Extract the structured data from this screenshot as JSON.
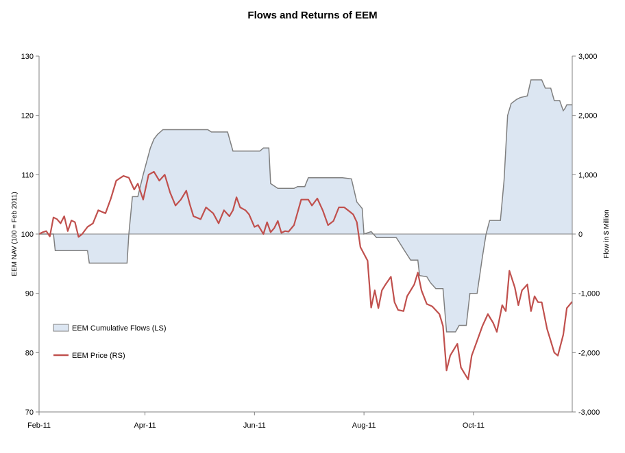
{
  "chart_data": {
    "type": "line",
    "title": "Flows and Returns of EEM",
    "x_tick_labels": [
      "Feb-11",
      "Apr-11",
      "Jun-11",
      "Aug-11",
      "Oct-11"
    ],
    "x_tick_positions": [
      "2011-02-01",
      "2011-04-01",
      "2011-06-01",
      "2011-08-01",
      "2011-10-01"
    ],
    "x_range": [
      "2011-02-01",
      "2011-11-25"
    ],
    "left_axis": {
      "label": "EEM NAV (100 = Feb 2011)",
      "range": [
        70,
        130
      ],
      "ticks": [
        70,
        80,
        90,
        100,
        110,
        120,
        130
      ],
      "tick_labels": [
        "70",
        "80",
        "90",
        "100",
        "110",
        "120",
        "130"
      ]
    },
    "right_axis": {
      "label": "Flow in $ Million",
      "range": [
        -3000,
        3000
      ],
      "ticks": [
        -3000,
        -2000,
        -1000,
        0,
        1000,
        2000,
        3000
      ],
      "tick_labels": [
        "-3,000",
        "-2,000",
        "-1,000",
        "0",
        "1,000",
        "2,000",
        "3,000"
      ]
    },
    "grid": false,
    "legend": {
      "placement": "left-middle",
      "entries": [
        "EEM Cumulative  Flows (LS)",
        "EEM Price (RS)"
      ]
    },
    "colors": {
      "flows_fill": "#dce6f2",
      "flows_line": "#7f7f7f",
      "price_line": "#c0504d",
      "zero_line": "#7f7f7f",
      "axis": "#808080"
    },
    "series": [
      {
        "name": "EEM Cumulative  Flows (LS)",
        "axis": "right",
        "style": "area",
        "points": [
          [
            "2011-02-01",
            0
          ],
          [
            "2011-02-09",
            0
          ],
          [
            "2011-02-10",
            -280
          ],
          [
            "2011-02-28",
            -280
          ],
          [
            "2011-03-01",
            -490
          ],
          [
            "2011-03-22",
            -490
          ],
          [
            "2011-03-23",
            0
          ],
          [
            "2011-03-25",
            630
          ],
          [
            "2011-03-28",
            630
          ],
          [
            "2011-03-31",
            1000
          ],
          [
            "2011-04-04",
            1450
          ],
          [
            "2011-04-06",
            1600
          ],
          [
            "2011-04-08",
            1680
          ],
          [
            "2011-04-11",
            1760
          ],
          [
            "2011-05-06",
            1760
          ],
          [
            "2011-05-08",
            1720
          ],
          [
            "2011-05-17",
            1720
          ],
          [
            "2011-05-20",
            1400
          ],
          [
            "2011-06-04",
            1400
          ],
          [
            "2011-06-06",
            1450
          ],
          [
            "2011-06-09",
            1450
          ],
          [
            "2011-06-10",
            850
          ],
          [
            "2011-06-14",
            770
          ],
          [
            "2011-06-23",
            770
          ],
          [
            "2011-06-25",
            800
          ],
          [
            "2011-06-29",
            800
          ],
          [
            "2011-07-01",
            950
          ],
          [
            "2011-07-20",
            950
          ],
          [
            "2011-07-25",
            930
          ],
          [
            "2011-07-28",
            540
          ],
          [
            "2011-07-31",
            430
          ],
          [
            "2011-08-01",
            0
          ],
          [
            "2011-08-05",
            40
          ],
          [
            "2011-08-08",
            -60
          ],
          [
            "2011-08-19",
            -60
          ],
          [
            "2011-08-24",
            -300
          ],
          [
            "2011-08-27",
            -440
          ],
          [
            "2011-08-31",
            -440
          ],
          [
            "2011-09-01",
            -700
          ],
          [
            "2011-09-05",
            -720
          ],
          [
            "2011-09-07",
            -820
          ],
          [
            "2011-09-10",
            -920
          ],
          [
            "2011-09-14",
            -920
          ],
          [
            "2011-09-16",
            -1650
          ],
          [
            "2011-09-21",
            -1650
          ],
          [
            "2011-09-23",
            -1540
          ],
          [
            "2011-09-27",
            -1540
          ],
          [
            "2011-09-29",
            -1000
          ],
          [
            "2011-10-03",
            -1000
          ],
          [
            "2011-10-06",
            -380
          ],
          [
            "2011-10-08",
            0
          ],
          [
            "2011-10-10",
            230
          ],
          [
            "2011-10-16",
            230
          ],
          [
            "2011-10-18",
            900
          ],
          [
            "2011-10-20",
            2000
          ],
          [
            "2011-10-22",
            2200
          ],
          [
            "2011-10-25",
            2270
          ],
          [
            "2011-10-27",
            2300
          ],
          [
            "2011-10-31",
            2330
          ],
          [
            "2011-11-02",
            2600
          ],
          [
            "2011-11-08",
            2600
          ],
          [
            "2011-11-10",
            2460
          ],
          [
            "2011-11-13",
            2460
          ],
          [
            "2011-11-15",
            2250
          ],
          [
            "2011-11-18",
            2250
          ],
          [
            "2011-11-20",
            2080
          ],
          [
            "2011-11-21",
            2120
          ],
          [
            "2011-11-22",
            2180
          ],
          [
            "2011-11-25",
            2180
          ]
        ]
      },
      {
        "name": "EEM Price (RS)",
        "axis": "left",
        "style": "line",
        "points": [
          [
            "2011-02-01",
            100
          ],
          [
            "2011-02-03",
            100.3
          ],
          [
            "2011-02-05",
            100.5
          ],
          [
            "2011-02-07",
            99.6
          ],
          [
            "2011-02-09",
            102.8
          ],
          [
            "2011-02-11",
            102.5
          ],
          [
            "2011-02-13",
            101.8
          ],
          [
            "2011-02-15",
            103
          ],
          [
            "2011-02-17",
            100.5
          ],
          [
            "2011-02-19",
            102.3
          ],
          [
            "2011-02-21",
            102
          ],
          [
            "2011-02-23",
            99.5
          ],
          [
            "2011-02-25",
            100
          ],
          [
            "2011-02-28",
            101.2
          ],
          [
            "2011-03-03",
            101.8
          ],
          [
            "2011-03-06",
            104
          ],
          [
            "2011-03-10",
            103.5
          ],
          [
            "2011-03-13",
            106
          ],
          [
            "2011-03-16",
            109
          ],
          [
            "2011-03-20",
            109.8
          ],
          [
            "2011-03-23",
            109.5
          ],
          [
            "2011-03-26",
            107.5
          ],
          [
            "2011-03-28",
            108.5
          ],
          [
            "2011-03-31",
            105.8
          ],
          [
            "2011-04-03",
            110
          ],
          [
            "2011-04-06",
            110.5
          ],
          [
            "2011-04-09",
            109
          ],
          [
            "2011-04-12",
            110
          ],
          [
            "2011-04-15",
            107
          ],
          [
            "2011-04-18",
            104.8
          ],
          [
            "2011-04-21",
            105.8
          ],
          [
            "2011-04-24",
            107.3
          ],
          [
            "2011-04-26",
            105
          ],
          [
            "2011-04-28",
            103
          ],
          [
            "2011-05-02",
            102.5
          ],
          [
            "2011-05-05",
            104.5
          ],
          [
            "2011-05-09",
            103.5
          ],
          [
            "2011-05-12",
            101.8
          ],
          [
            "2011-05-15",
            104
          ],
          [
            "2011-05-18",
            103
          ],
          [
            "2011-05-20",
            104
          ],
          [
            "2011-05-22",
            106.2
          ],
          [
            "2011-05-24",
            104.5
          ],
          [
            "2011-05-27",
            104
          ],
          [
            "2011-05-29",
            103.3
          ],
          [
            "2011-06-01",
            101.2
          ],
          [
            "2011-06-03",
            101.5
          ],
          [
            "2011-06-06",
            100
          ],
          [
            "2011-06-08",
            102
          ],
          [
            "2011-06-10",
            100.3
          ],
          [
            "2011-06-12",
            101
          ],
          [
            "2011-06-14",
            102.2
          ],
          [
            "2011-06-16",
            100.2
          ],
          [
            "2011-06-18",
            100.5
          ],
          [
            "2011-06-20",
            100.4
          ],
          [
            "2011-06-23",
            101.5
          ],
          [
            "2011-06-27",
            105.8
          ],
          [
            "2011-07-01",
            105.8
          ],
          [
            "2011-07-03",
            104.8
          ],
          [
            "2011-07-06",
            106
          ],
          [
            "2011-07-09",
            104
          ],
          [
            "2011-07-12",
            101.5
          ],
          [
            "2011-07-15",
            102.2
          ],
          [
            "2011-07-18",
            104.5
          ],
          [
            "2011-07-21",
            104.5
          ],
          [
            "2011-07-24",
            103.8
          ],
          [
            "2011-07-26",
            103.3
          ],
          [
            "2011-07-28",
            102
          ],
          [
            "2011-07-30",
            97.8
          ],
          [
            "2011-08-03",
            95.5
          ],
          [
            "2011-08-05",
            87.6
          ],
          [
            "2011-08-07",
            90.5
          ],
          [
            "2011-08-09",
            87.5
          ],
          [
            "2011-08-11",
            90.5
          ],
          [
            "2011-08-13",
            91.5
          ],
          [
            "2011-08-16",
            92.8
          ],
          [
            "2011-08-18",
            88.5
          ],
          [
            "2011-08-20",
            87.2
          ],
          [
            "2011-08-23",
            87
          ],
          [
            "2011-08-25",
            89.5
          ],
          [
            "2011-08-29",
            91.5
          ],
          [
            "2011-08-31",
            93.5
          ],
          [
            "2011-09-02",
            90.5
          ],
          [
            "2011-09-05",
            88.2
          ],
          [
            "2011-09-08",
            87.8
          ],
          [
            "2011-09-12",
            86.5
          ],
          [
            "2011-09-14",
            84.5
          ],
          [
            "2011-09-16",
            77
          ],
          [
            "2011-09-18",
            79.5
          ],
          [
            "2011-09-20",
            80.5
          ],
          [
            "2011-09-22",
            81.5
          ],
          [
            "2011-09-24",
            77.5
          ],
          [
            "2011-09-26",
            76.5
          ],
          [
            "2011-09-28",
            75.5
          ],
          [
            "2011-09-30",
            79.5
          ],
          [
            "2011-10-03",
            82
          ],
          [
            "2011-10-06",
            84.5
          ],
          [
            "2011-10-09",
            86.5
          ],
          [
            "2011-10-12",
            85
          ],
          [
            "2011-10-14",
            83.5
          ],
          [
            "2011-10-17",
            88
          ],
          [
            "2011-10-19",
            87
          ],
          [
            "2011-10-21",
            93.8
          ],
          [
            "2011-10-24",
            91
          ],
          [
            "2011-10-26",
            88
          ],
          [
            "2011-10-28",
            90.5
          ],
          [
            "2011-10-31",
            91.5
          ],
          [
            "2011-11-02",
            87
          ],
          [
            "2011-11-04",
            89.5
          ],
          [
            "2011-11-06",
            88.5
          ],
          [
            "2011-11-08",
            88.5
          ],
          [
            "2011-11-11",
            84
          ],
          [
            "2011-11-13",
            82
          ],
          [
            "2011-11-15",
            80
          ],
          [
            "2011-11-17",
            79.5
          ],
          [
            "2011-11-20",
            83
          ],
          [
            "2011-11-22",
            87.5
          ],
          [
            "2011-11-25",
            88.6
          ]
        ]
      }
    ]
  }
}
